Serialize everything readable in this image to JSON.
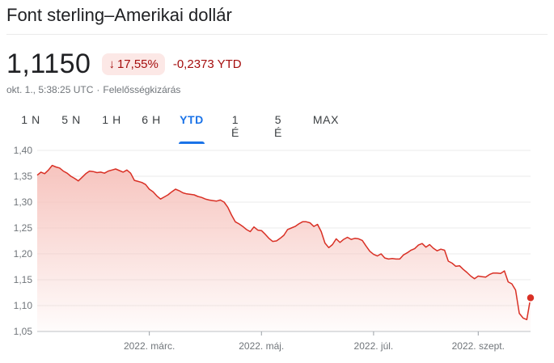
{
  "header": {
    "title": "Font sterling–Amerikai dollár"
  },
  "quote": {
    "price": "1,1150",
    "change_percent": "17,55%",
    "change_direction": "down",
    "change_ytd": "-0,2373 YTD",
    "timestamp": "okt. 1., 5:38:25 UTC",
    "disclaimer": "Felelősségkizárás"
  },
  "tabs": [
    {
      "label": "1 N",
      "active": false
    },
    {
      "label": "5 N",
      "active": false
    },
    {
      "label": "1 H",
      "active": false
    },
    {
      "label": "6 H",
      "active": false
    },
    {
      "label": "YTD",
      "active": true
    },
    {
      "label": "1 É",
      "active": false
    },
    {
      "label": "5 É",
      "active": false
    },
    {
      "label": "MAX",
      "active": false
    }
  ],
  "colors": {
    "line": "#d93025",
    "fill_top": "#f6c1bb",
    "accent": "#1a73e8",
    "negative": "#a50e0e"
  },
  "chart_data": {
    "type": "area",
    "ylim": [
      1.05,
      1.4
    ],
    "yticks": [
      "1,40",
      "1,35",
      "1,30",
      "1,25",
      "1,20",
      "1,15",
      "1,10",
      "1,05"
    ],
    "ytick_values": [
      1.4,
      1.35,
      1.3,
      1.25,
      1.2,
      1.15,
      1.1,
      1.05
    ],
    "xticks": [
      "2022. márc.",
      "2022. máj.",
      "2022. júl.",
      "2022. szept."
    ],
    "xtick_index": [
      30,
      60,
      90,
      118
    ],
    "x_count": 133,
    "grid": true,
    "values": [
      1.352,
      1.358,
      1.355,
      1.362,
      1.371,
      1.368,
      1.366,
      1.36,
      1.356,
      1.35,
      1.346,
      1.341,
      1.348,
      1.355,
      1.36,
      1.359,
      1.357,
      1.358,
      1.356,
      1.36,
      1.362,
      1.364,
      1.361,
      1.358,
      1.362,
      1.356,
      1.342,
      1.34,
      1.338,
      1.334,
      1.325,
      1.32,
      1.312,
      1.306,
      1.31,
      1.314,
      1.32,
      1.325,
      1.322,
      1.318,
      1.316,
      1.315,
      1.314,
      1.311,
      1.309,
      1.306,
      1.304,
      1.303,
      1.302,
      1.304,
      1.3,
      1.29,
      1.275,
      1.262,
      1.258,
      1.253,
      1.247,
      1.243,
      1.252,
      1.246,
      1.245,
      1.238,
      1.23,
      1.224,
      1.225,
      1.23,
      1.236,
      1.247,
      1.25,
      1.253,
      1.258,
      1.262,
      1.262,
      1.26,
      1.253,
      1.257,
      1.243,
      1.221,
      1.212,
      1.218,
      1.229,
      1.222,
      1.228,
      1.232,
      1.228,
      1.23,
      1.229,
      1.226,
      1.215,
      1.205,
      1.199,
      1.196,
      1.2,
      1.192,
      1.19,
      1.191,
      1.19,
      1.19,
      1.198,
      1.202,
      1.207,
      1.21,
      1.217,
      1.22,
      1.213,
      1.218,
      1.211,
      1.206,
      1.209,
      1.207,
      1.186,
      1.182,
      1.176,
      1.177,
      1.17,
      1.164,
      1.157,
      1.152,
      1.157,
      1.156,
      1.155,
      1.16,
      1.163,
      1.163,
      1.162,
      1.167,
      1.146,
      1.142,
      1.13,
      1.085,
      1.076,
      1.073,
      1.115
    ]
  }
}
